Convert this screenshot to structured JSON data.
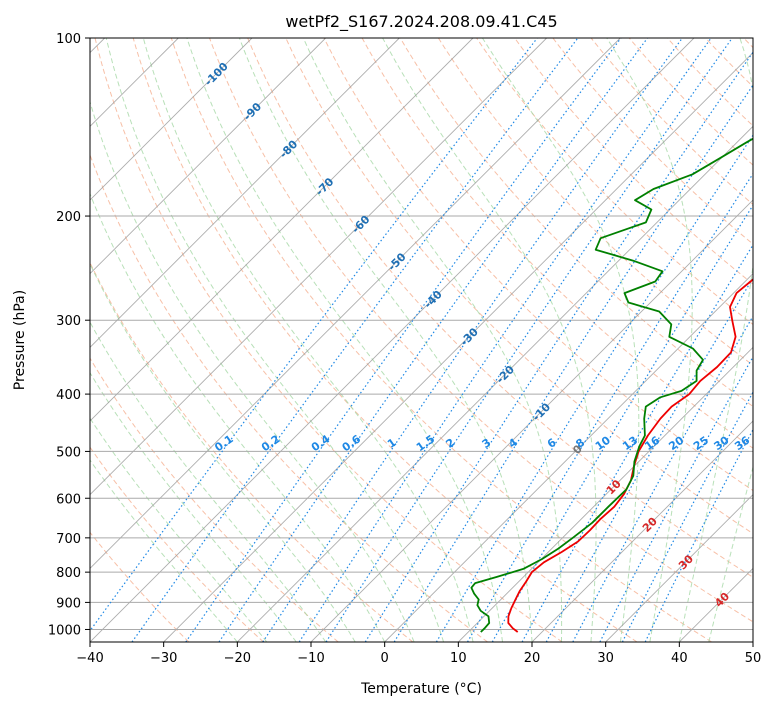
{
  "chart_data": {
    "type": "line",
    "title": "wetPf2_S167.2024.208.09.41.C45",
    "xlabel": "Temperature (°C)",
    "ylabel": "Pressure (hPa)",
    "xlim": [
      -40,
      50
    ],
    "ylim": [
      1050,
      100
    ],
    "y_scale": "log",
    "grid": true,
    "x_ticks": [
      -40,
      -30,
      -20,
      -10,
      0,
      10,
      20,
      30,
      40,
      50
    ],
    "y_ticks": [
      100,
      200,
      300,
      400,
      500,
      600,
      700,
      800,
      900,
      1000
    ],
    "isotherm_labels": [
      "-100",
      "-90",
      "-80",
      "-70",
      "-60",
      "-50",
      "-40",
      "-30",
      "-20",
      "-10",
      "0",
      "10",
      "20",
      "30",
      "40"
    ],
    "mixing_ratio_labels": [
      "0.1",
      "0.2",
      "0.4",
      "0.6",
      "1",
      "1.5",
      "2",
      "3",
      "4",
      "6",
      "8",
      "10",
      "13",
      "16",
      "20",
      "25",
      "30",
      "36"
    ],
    "colors": {
      "temperature": "#ee0000",
      "dewpoint": "#008000",
      "isotherm": "#999999",
      "isobar": "#aaaaaa",
      "dry_adiabat": "#f4a582",
      "moist_adiabat": "#a6d8a6",
      "mixing_ratio": "#1e88e5",
      "label_cold": "#1f6fb4",
      "label_zero": "#777777",
      "label_warm": "#d62728"
    },
    "series": [
      {
        "key": "temperature",
        "color": "#ee0000",
        "points": [
          {
            "p": 1010,
            "t": 16.7
          },
          {
            "p": 995,
            "t": 15.5
          },
          {
            "p": 975,
            "t": 14.2
          },
          {
            "p": 950,
            "t": 13.3
          },
          {
            "p": 920,
            "t": 12.6
          },
          {
            "p": 890,
            "t": 12.0
          },
          {
            "p": 860,
            "t": 11.4
          },
          {
            "p": 830,
            "t": 11.0
          },
          {
            "p": 800,
            "t": 10.5
          },
          {
            "p": 770,
            "t": 10.8
          },
          {
            "p": 740,
            "t": 11.8
          },
          {
            "p": 710,
            "t": 12.6
          },
          {
            "p": 680,
            "t": 12.7
          },
          {
            "p": 650,
            "t": 12.6
          },
          {
            "p": 620,
            "t": 12.8
          },
          {
            "p": 590,
            "t": 12.4
          },
          {
            "p": 560,
            "t": 11.5
          },
          {
            "p": 530,
            "t": 10.0
          },
          {
            "p": 500,
            "t": 8.6
          },
          {
            "p": 470,
            "t": 7.7
          },
          {
            "p": 440,
            "t": 7.1
          },
          {
            "p": 420,
            "t": 7.0
          },
          {
            "p": 400,
            "t": 7.7
          },
          {
            "p": 380,
            "t": 7.4
          },
          {
            "p": 360,
            "t": 7.8
          },
          {
            "p": 340,
            "t": 7.7
          },
          {
            "p": 320,
            "t": 6.2
          },
          {
            "p": 300,
            "t": 3.5
          },
          {
            "p": 285,
            "t": 1.4
          },
          {
            "p": 270,
            "t": 0.4
          },
          {
            "p": 255,
            "t": 0.8
          },
          {
            "p": 240,
            "t": 2.1
          },
          {
            "p": 225,
            "t": 3.6
          },
          {
            "p": 210,
            "t": 5.0
          },
          {
            "p": 195,
            "t": 5.9
          },
          {
            "p": 180,
            "t": 6.2
          },
          {
            "p": 165,
            "t": 6.2
          },
          {
            "p": 150,
            "t": 6.0
          },
          {
            "p": 135,
            "t": 6.0
          },
          {
            "p": 125,
            "t": 5.4
          },
          {
            "p": 115,
            "t": 4.4
          },
          {
            "p": 108,
            "t": 4.3
          },
          {
            "p": 100,
            "t": 5.2
          }
        ]
      },
      {
        "key": "dewpoint",
        "color": "#008000",
        "points": [
          {
            "p": 1010,
            "t": 11.7
          },
          {
            "p": 995,
            "t": 11.7
          },
          {
            "p": 975,
            "t": 11.6
          },
          {
            "p": 950,
            "t": 10.6
          },
          {
            "p": 930,
            "t": 8.8
          },
          {
            "p": 910,
            "t": 7.6
          },
          {
            "p": 890,
            "t": 7.0
          },
          {
            "p": 870,
            "t": 5.6
          },
          {
            "p": 850,
            "t": 4.4
          },
          {
            "p": 835,
            "t": 4.3
          },
          {
            "p": 815,
            "t": 6.4
          },
          {
            "p": 790,
            "t": 8.9
          },
          {
            "p": 760,
            "t": 10.1
          },
          {
            "p": 730,
            "t": 10.9
          },
          {
            "p": 700,
            "t": 11.4
          },
          {
            "p": 660,
            "t": 12.0
          },
          {
            "p": 620,
            "t": 12.0
          },
          {
            "p": 580,
            "t": 12.1
          },
          {
            "p": 550,
            "t": 11.2
          },
          {
            "p": 520,
            "t": 9.4
          },
          {
            "p": 490,
            "t": 8.0
          },
          {
            "p": 470,
            "t": 7.3
          },
          {
            "p": 440,
            "t": 4.9
          },
          {
            "p": 420,
            "t": 3.5
          },
          {
            "p": 405,
            "t": 4.2
          },
          {
            "p": 395,
            "t": 6.2
          },
          {
            "p": 380,
            "t": 6.9
          },
          {
            "p": 365,
            "t": 5.5
          },
          {
            "p": 350,
            "t": 4.9
          },
          {
            "p": 335,
            "t": 2.0
          },
          {
            "p": 320,
            "t": -2.8
          },
          {
            "p": 305,
            "t": -4.2
          },
          {
            "p": 290,
            "t": -7.6
          },
          {
            "p": 280,
            "t": -13.0
          },
          {
            "p": 270,
            "t": -14.8
          },
          {
            "p": 258,
            "t": -12.2
          },
          {
            "p": 248,
            "t": -12.6
          },
          {
            "p": 238,
            "t": -18.0
          },
          {
            "p": 228,
            "t": -24.6
          },
          {
            "p": 218,
            "t": -25.5
          },
          {
            "p": 205,
            "t": -21.5
          },
          {
            "p": 195,
            "t": -22.5
          },
          {
            "p": 188,
            "t": -26.0
          },
          {
            "p": 180,
            "t": -25.0
          },
          {
            "p": 170,
            "t": -21.7
          },
          {
            "p": 160,
            "t": -20.2
          },
          {
            "p": 150,
            "t": -18.7
          },
          {
            "p": 140,
            "t": -16.8
          },
          {
            "p": 130,
            "t": -15.5
          },
          {
            "p": 120,
            "t": -15.9
          },
          {
            "p": 112,
            "t": -16.5
          },
          {
            "p": 106,
            "t": -18.5
          },
          {
            "p": 100,
            "t": -21.6
          }
        ]
      }
    ]
  }
}
